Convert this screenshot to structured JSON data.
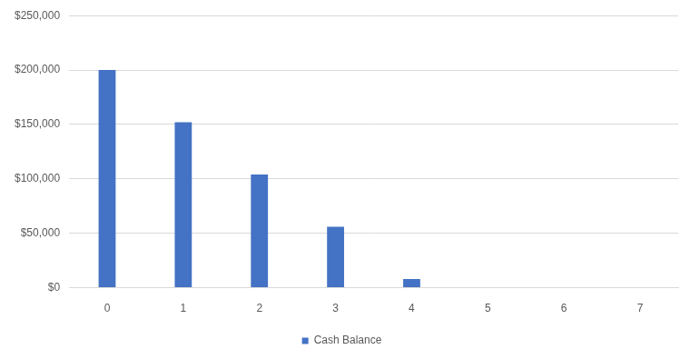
{
  "chart_data": {
    "type": "bar",
    "categories": [
      "0",
      "1",
      "2",
      "3",
      "4",
      "5",
      "6",
      "7"
    ],
    "series": [
      {
        "name": "Cash Balance",
        "color": "#4472c4",
        "values": [
          200000,
          152000,
          104000,
          56000,
          8000,
          0,
          0,
          0
        ]
      }
    ],
    "ylim": [
      0,
      250000
    ],
    "yticks": [
      {
        "value": 0,
        "label": "$0"
      },
      {
        "value": 50000,
        "label": "$50,000"
      },
      {
        "value": 100000,
        "label": "$100,000"
      },
      {
        "value": 150000,
        "label": "$150,000"
      },
      {
        "value": 200000,
        "label": "$200,000"
      },
      {
        "value": 250000,
        "label": "$250,000"
      }
    ],
    "grid": true,
    "legend": "bottom"
  }
}
